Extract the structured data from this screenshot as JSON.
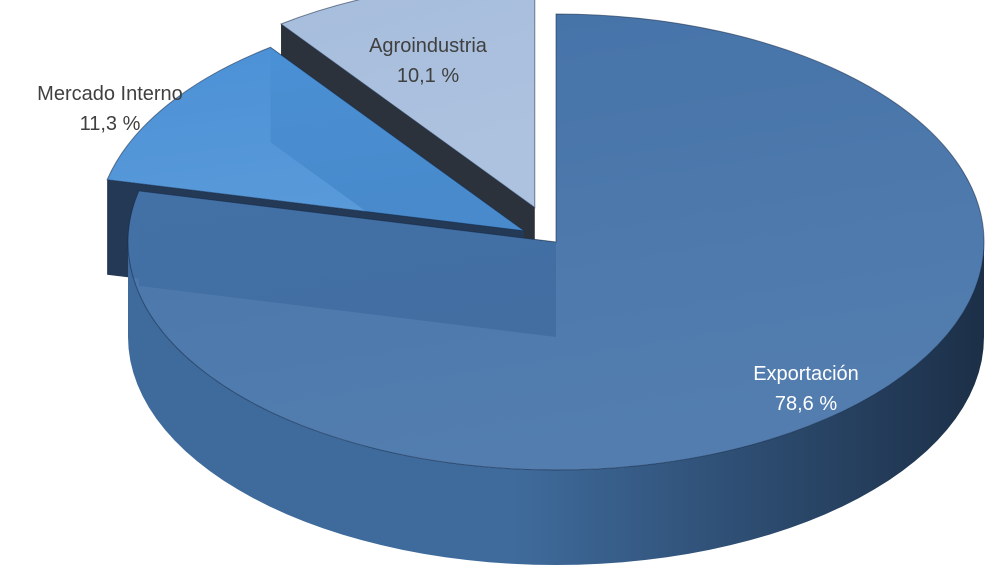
{
  "chart_data": {
    "type": "pie",
    "style": "3d-exploded",
    "title": "",
    "slices": [
      {
        "label": "Exportación",
        "value": 78.6,
        "value_label": "78,6 %",
        "top_color": "#4472a8",
        "side_light": "#3f6b9c",
        "side_dark": "#1c2f47",
        "label_color": "#ffffff"
      },
      {
        "label": "Mercado Interno",
        "value": 11.3,
        "value_label": "11,3 %",
        "top_color": "#4b91d6",
        "side_light": "#3d7cbf",
        "side_dark": "#233955",
        "label_color": "#404040"
      },
      {
        "label": "Agroindustria",
        "value": 10.1,
        "value_label": "10,1 %",
        "top_color": "#a6bddc",
        "side_light": "#4a5563",
        "side_dark": "#2b323b",
        "label_color": "#404040"
      }
    ]
  }
}
